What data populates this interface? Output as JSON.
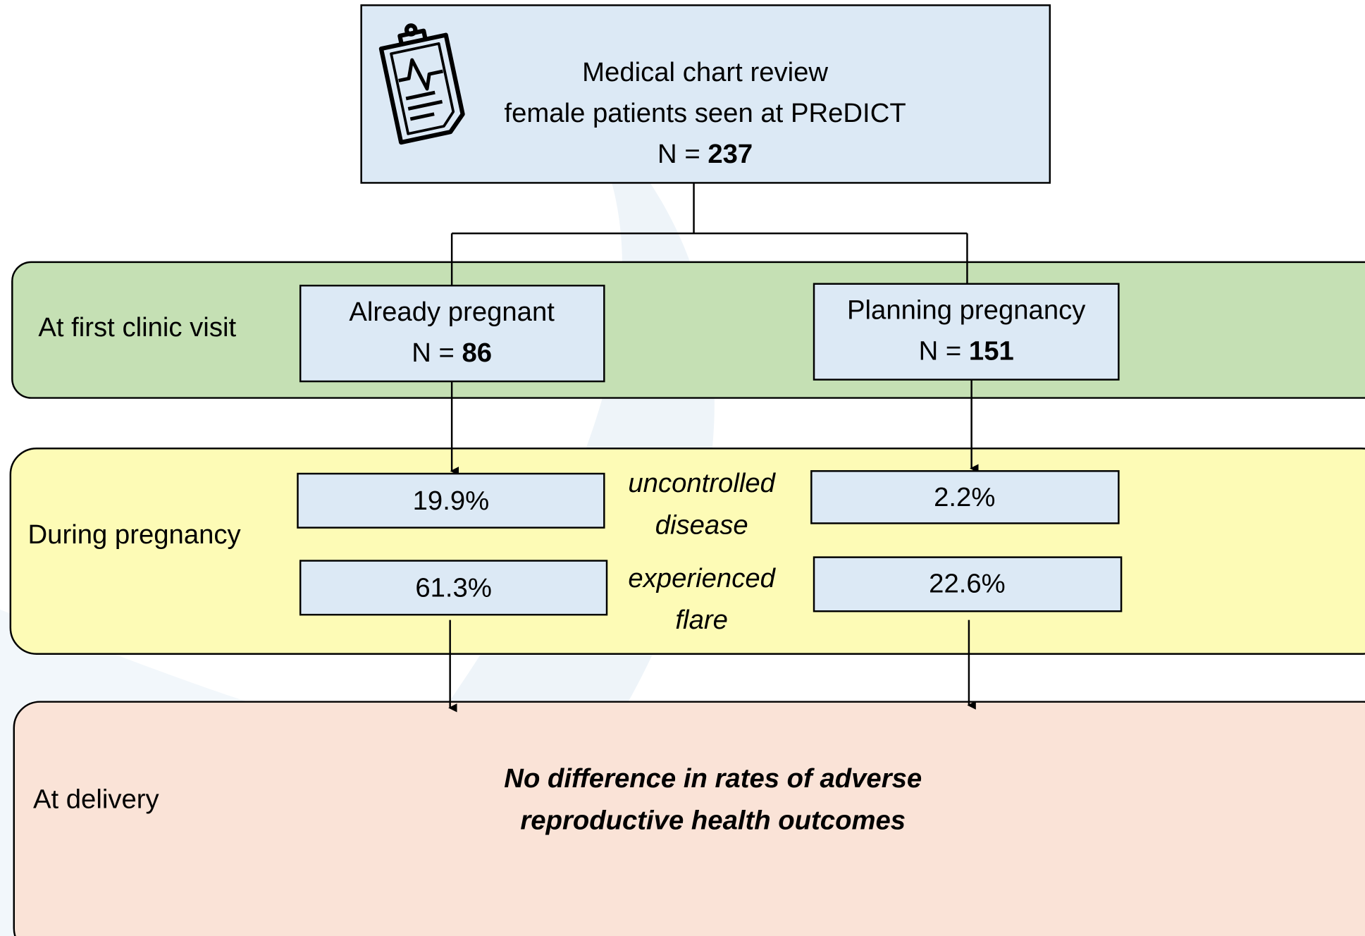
{
  "top": {
    "line1": "Medical chart review",
    "line2": "female patients seen at PReDICT",
    "n_label": "N =",
    "n": 237
  },
  "stages": [
    {
      "label": "At first clinic visit"
    },
    {
      "label": "During pregnancy"
    },
    {
      "label": "At delivery"
    }
  ],
  "groups": [
    {
      "label": "Already pregnant",
      "n_label": "N =",
      "n": 86
    },
    {
      "label": "Planning pregnancy",
      "n_label": "N =",
      "n": 151
    }
  ],
  "outcomes": [
    {
      "label_lines": [
        "uncontrolled",
        "disease"
      ],
      "values": [
        "19.9%",
        "2.2%"
      ]
    },
    {
      "label_lines": [
        "experienced",
        "flare"
      ],
      "values": [
        "61.3%",
        "22.6%"
      ]
    }
  ],
  "conclusion": [
    "No difference in rates of adverse",
    "reproductive health outcomes"
  ]
}
